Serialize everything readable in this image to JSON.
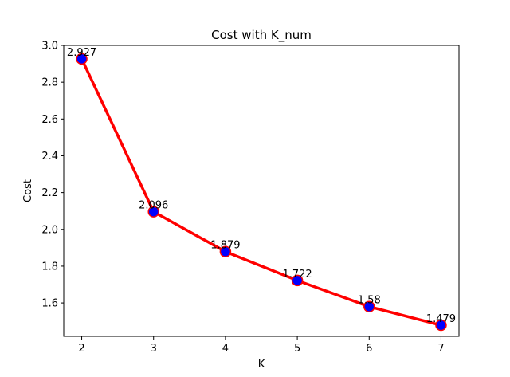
{
  "chart_data": {
    "type": "line",
    "title": "Cost with K_num",
    "xlabel": "K",
    "ylabel": "Cost",
    "x": [
      2,
      3,
      4,
      5,
      6,
      7
    ],
    "series": [
      {
        "values": [
          2.927,
          2.096,
          1.879,
          1.722,
          1.58,
          1.479
        ],
        "data_labels": [
          "2.927",
          "2.096",
          "1.879",
          "1.722",
          "1.58",
          "1.479"
        ],
        "line_color": "#ff0000",
        "marker_face_color": "#0000ff",
        "marker_edge_color": "#ff0000"
      }
    ],
    "xlim": [
      1.75,
      7.25
    ],
    "ylim": [
      1.4184,
      3.0
    ],
    "xticks": [
      "2",
      "3",
      "4",
      "5",
      "6",
      "7"
    ],
    "yticks": [
      "1.6",
      "1.8",
      "2.0",
      "2.2",
      "2.4",
      "2.6",
      "2.8",
      "3.0"
    ],
    "grid": false
  }
}
